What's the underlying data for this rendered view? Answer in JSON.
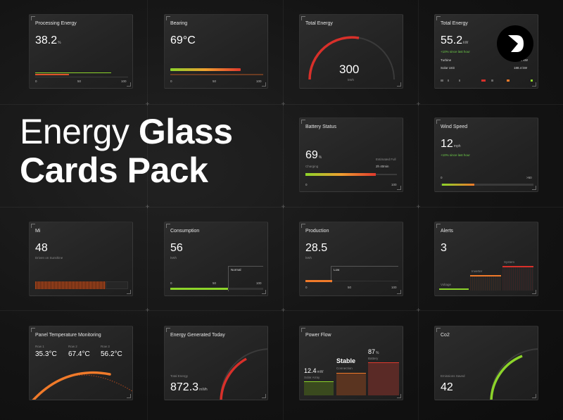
{
  "headline": {
    "light": "Energy",
    "bold_1": "Glass",
    "bold_2": "Cards Pack"
  },
  "colors": {
    "accent_green": "#8cd42a",
    "accent_red": "#e03a2e",
    "accent_orange": "#f07a2a"
  },
  "cards": {
    "processing": {
      "title": "Processing Energy",
      "value": "38.2",
      "unit": "%",
      "ticks": [
        "0",
        "50",
        "100"
      ],
      "level": 0.38
    },
    "bearing": {
      "title": "Bearing",
      "value": "69°C",
      "ticks": [
        "0",
        "50",
        "100"
      ],
      "level": 0.69
    },
    "total_energy_gauge": {
      "title": "Total Energy",
      "value": "300",
      "unit": "kWh"
    },
    "total_energy": {
      "title": "Total Energy",
      "value": "55.2",
      "unit": "kW",
      "note": "+10% since last hour",
      "rows": [
        {
          "label": "Turbine",
          "value": "2.5 kW"
        },
        {
          "label": "Solar Unit",
          "value": "188.4 kW"
        }
      ]
    },
    "battery": {
      "title": "Battery Status",
      "value": "69",
      "unit": "%",
      "status": "Charging",
      "estimate_label": "Estimated Full",
      "estimate_value": "2h 40min",
      "ticks": [
        "0",
        "100"
      ],
      "level": 0.69
    },
    "wind": {
      "title": "Wind Speed",
      "value": "12",
      "unit": "mph",
      "note": "+10% since last hour",
      "ticks": [
        "0",
        ">50"
      ],
      "level": 0.24
    },
    "mi": {
      "title": "Mi",
      "value": "48",
      "note": "Driven on Sunshine"
    },
    "consumption": {
      "title": "Consumption",
      "value": "56",
      "unit": "kWh",
      "marker": "Normal",
      "ticks": [
        "0",
        "50",
        "100"
      ],
      "level": 0.56
    },
    "production": {
      "title": "Production",
      "value": "28.5",
      "unit": "kWh",
      "marker": "Low",
      "ticks": [
        "0",
        "50",
        "100"
      ],
      "level": 0.28
    },
    "alerts": {
      "title": "Alerts",
      "value": "3",
      "bars": [
        {
          "label": "Voltage"
        },
        {
          "label": "Inverter"
        },
        {
          "label": "System"
        }
      ]
    },
    "panel_temp": {
      "title": "Panel Temperature Monitoring",
      "rows": [
        {
          "label": "Row 1",
          "value": "35.3°C"
        },
        {
          "label": "Row 2",
          "value": "67.4°C"
        },
        {
          "label": "Row 3",
          "value": "56.2°C"
        }
      ]
    },
    "generated": {
      "title": "Energy Generated Today",
      "label": "Total Energy",
      "value": "872.3",
      "unit": "mWh"
    },
    "power_flow": {
      "title": "Power Flow",
      "items": [
        {
          "value": "12.4",
          "unit": "mW",
          "label": "Solar Array"
        },
        {
          "value": "Stable",
          "label": "Connection"
        },
        {
          "value": "87",
          "unit": "%",
          "label": "Battery"
        }
      ]
    },
    "co2": {
      "title": "Co2",
      "label": "Emissions Saved",
      "value": "42"
    }
  }
}
